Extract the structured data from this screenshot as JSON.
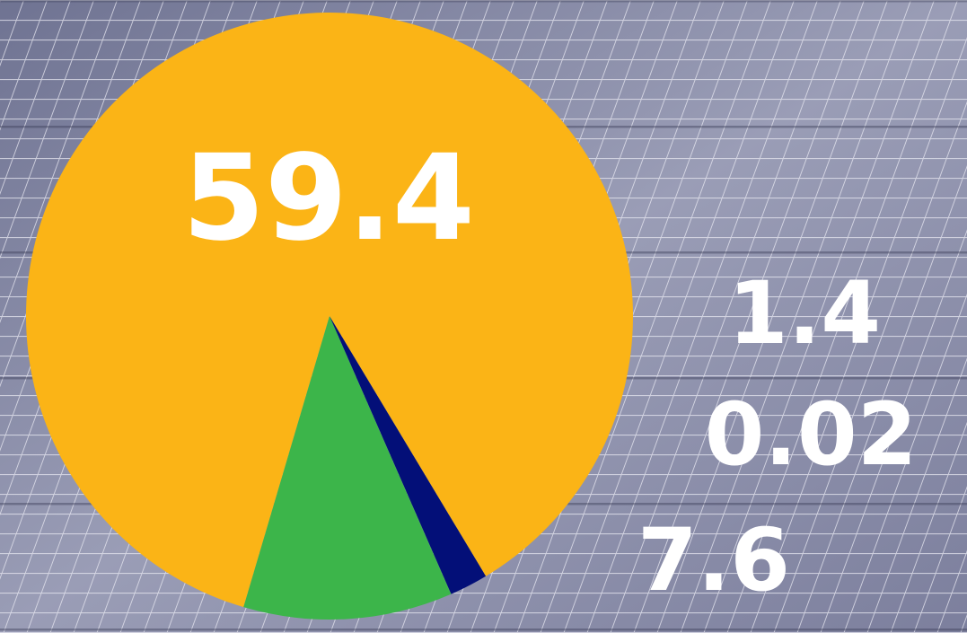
{
  "colors": {
    "slice_solar": "#fbb416",
    "slice_green": "#3cb54a",
    "slice_navy": "#030f78",
    "label": "#ffffff",
    "background_panels": "#8f92ad"
  },
  "chart_data": {
    "type": "pie",
    "title": "",
    "slices": [
      {
        "label": "59.4",
        "value": 59.4,
        "color": "#fbb416"
      },
      {
        "label": "7.6",
        "value": 7.6,
        "color": "#3cb54a"
      },
      {
        "label": "0.02",
        "value": 0.02,
        "color": "#3cb54a"
      },
      {
        "label": "1.4",
        "value": 1.4,
        "color": "#030f78"
      }
    ],
    "start_angle_deg": 59,
    "direction": "counterclockwise",
    "legend": "none",
    "labels": [
      "59.4",
      "1.4",
      "0.02",
      "7.6"
    ]
  }
}
